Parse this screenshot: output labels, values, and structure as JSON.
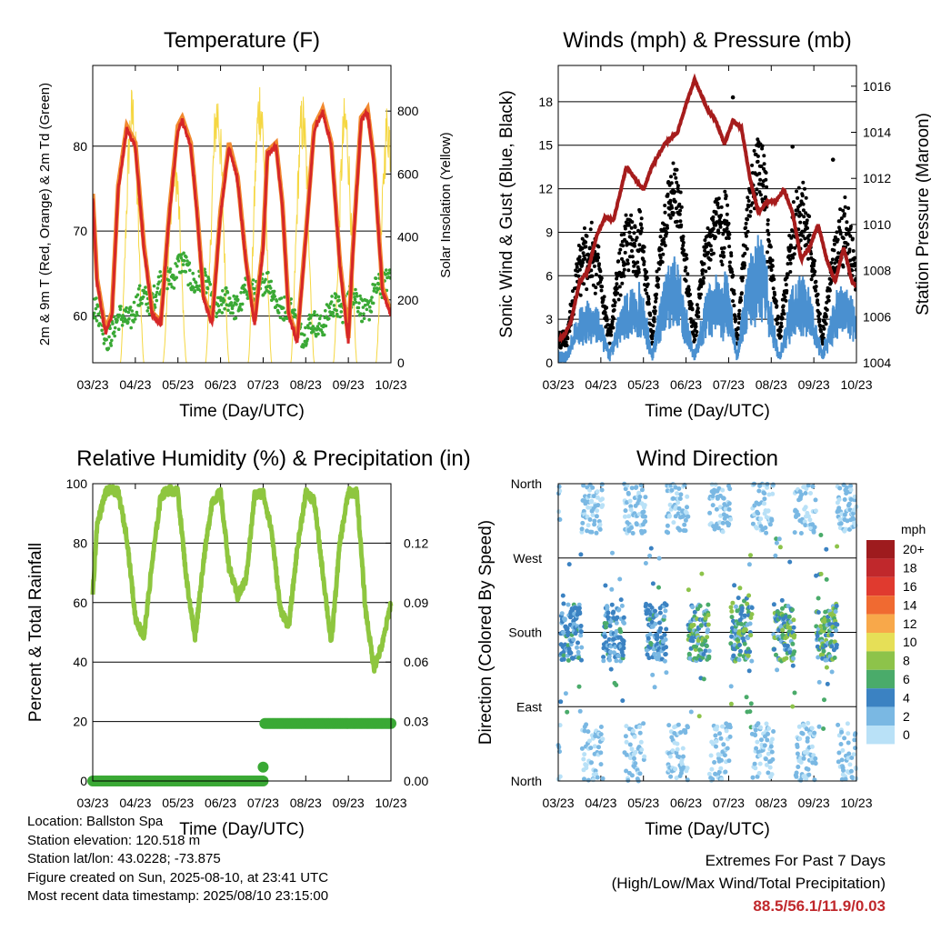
{
  "chart_data": [
    {
      "type": "line",
      "title": "Temperature (F)",
      "xlabel": "Time (Day/UTC)",
      "ylabel": "2m & 9m T (Red, Orange) & 2m Td (Green)",
      "ylabel_right": "Solar Insolation (Yellow)",
      "x_ticks": [
        "03/23",
        "04/23",
        "05/23",
        "06/23",
        "07/23",
        "08/23",
        "09/23",
        "10/23"
      ],
      "y_ticks": [
        60,
        70,
        80
      ],
      "y_right_ticks": [
        0,
        200,
        400,
        600,
        800
      ],
      "ylim": [
        54.5,
        89.5
      ],
      "ylim_right": [
        0,
        945
      ],
      "series": [
        {
          "name": "2m T",
          "color": "#d62728",
          "t": [
            0,
            0.1,
            0.3,
            0.45,
            0.6,
            0.8,
            1,
            1.2,
            1.4,
            1.6,
            1.8,
            2,
            2.1,
            2.3,
            2.45,
            2.6,
            2.8,
            3,
            3.2,
            3.4,
            3.6,
            3.8,
            4,
            4.1,
            4.3,
            4.45,
            4.6,
            4.8,
            5,
            5.2,
            5.4,
            5.6,
            5.8,
            6,
            6.1,
            6.3,
            6.45,
            6.6,
            6.8,
            7
          ],
          "values": [
            74,
            64,
            58,
            60,
            75,
            82,
            80,
            68,
            60,
            59,
            72,
            82,
            83,
            80,
            72,
            62,
            59,
            72,
            80,
            76,
            66,
            59,
            68,
            79,
            80,
            73,
            60,
            57,
            69,
            82,
            84,
            80,
            66,
            57,
            67,
            83,
            84,
            78,
            63,
            60
          ]
        },
        {
          "name": "2m Td",
          "color": "#3aa935",
          "t": [
            0,
            0.3,
            0.6,
            1,
            1.5,
            2,
            2.5,
            3,
            3.5,
            4,
            4.5,
            5,
            5.5,
            6,
            6.5,
            7
          ],
          "values": [
            61,
            58,
            59,
            61,
            63,
            66,
            64,
            61,
            62,
            64,
            61,
            58,
            60,
            62,
            61,
            66
          ]
        },
        {
          "name": "Solar Insolation",
          "color": "#f5d742",
          "peaks": [
            880,
            890,
            700,
            900,
            930,
            870,
            860,
            850,
            890
          ]
        }
      ]
    },
    {
      "type": "scatter",
      "title": "Winds (mph) & Pressure (mb)",
      "xlabel": "Time (Day/UTC)",
      "ylabel": "Sonic Wind & Gust (Blue, Black)",
      "ylabel_right": "Station Pressure (Maroon)",
      "x_ticks": [
        "03/23",
        "04/23",
        "05/23",
        "06/23",
        "07/23",
        "08/23",
        "09/23",
        "10/23"
      ],
      "y_ticks": [
        0,
        3,
        6,
        9,
        12,
        15,
        18
      ],
      "y_right_ticks": [
        1004,
        1006,
        1008,
        1010,
        1012,
        1014,
        1016
      ],
      "ylim": [
        0,
        20.5
      ],
      "ylim_right": [
        1004,
        1016.9
      ],
      "series": [
        {
          "name": "Station Pressure",
          "color": "#a61c1c",
          "t": [
            0,
            0.15,
            0.3,
            0.5,
            0.7,
            0.9,
            1.1,
            1.3,
            1.6,
            1.8,
            2,
            2.2,
            2.5,
            2.8,
            3,
            3.2,
            3.5,
            3.7,
            3.9,
            4.1,
            4.3,
            4.5,
            4.7,
            4.9,
            5.1,
            5.3,
            5.5,
            5.7,
            5.9,
            6.1,
            6.3,
            6.5,
            6.7,
            6.9,
            7
          ],
          "values": [
            1005,
            1005.2,
            1005.8,
            1007.5,
            1008,
            1009.5,
            1010.3,
            1010.2,
            1012.5,
            1012,
            1011.5,
            1012.5,
            1013.5,
            1014,
            1015.2,
            1016.3,
            1015,
            1014.5,
            1013.5,
            1014.5,
            1014.2,
            1012,
            1010.5,
            1011,
            1011,
            1011.5,
            1010.5,
            1008.5,
            1009,
            1010,
            1008.5,
            1007.5,
            1009,
            1007.5,
            1007.3
          ]
        }
      ],
      "gust_envelope": [
        8.5,
        10,
        15,
        12,
        18.3,
        13,
        11,
        10
      ]
    },
    {
      "type": "line",
      "title": "Relative Humidity (%) & Precipitation (in)",
      "xlabel": "Time (Day/UTC)",
      "ylabel": "Percent & Total Rainfall",
      "x_ticks": [
        "03/23",
        "04/23",
        "05/23",
        "06/23",
        "07/23",
        "08/23",
        "09/23",
        "10/23"
      ],
      "y_ticks": [
        0,
        20,
        40,
        60,
        80,
        100
      ],
      "y_right_ticks": [
        "0.00",
        "0.03",
        "0.06",
        "0.09",
        "0.12"
      ],
      "ylim": [
        0,
        100
      ],
      "series": [
        {
          "name": "Relative Humidity",
          "color": "#8ec63f",
          "t": [
            0,
            0.1,
            0.3,
            0.45,
            0.6,
            0.8,
            1,
            1.2,
            1.4,
            1.6,
            1.8,
            2,
            2.2,
            2.4,
            2.6,
            2.8,
            3,
            3.2,
            3.4,
            3.6,
            3.8,
            4,
            4.2,
            4.4,
            4.6,
            4.8,
            5,
            5.2,
            5.4,
            5.6,
            5.8,
            6,
            6.2,
            6.4,
            6.6,
            6.8,
            7
          ],
          "values": [
            63,
            86,
            97,
            98,
            97,
            82,
            55,
            48,
            74,
            96,
            98,
            97,
            68,
            48,
            74,
            94,
            97,
            72,
            62,
            68,
            96,
            97,
            84,
            58,
            52,
            78,
            97,
            94,
            70,
            46,
            80,
            97,
            97,
            58,
            38,
            46,
            60
          ]
        },
        {
          "name": "Total Rainfall",
          "color": "#3aa935",
          "t": [
            0,
            4,
            4.03,
            7
          ],
          "values": [
            0,
            0,
            0.029,
            0.029
          ]
        }
      ]
    },
    {
      "type": "scatter",
      "title": "Wind Direction",
      "xlabel": "Time (Day/UTC)",
      "ylabel": "Direction (Colored By Speed)",
      "x_ticks": [
        "03/23",
        "04/23",
        "05/23",
        "06/23",
        "07/23",
        "08/23",
        "09/23",
        "10/23"
      ],
      "y_ticks": [
        "North",
        "East",
        "South",
        "West",
        "North"
      ],
      "legend_title": "mph",
      "legend_labels": [
        "20+",
        "18",
        "16",
        "14",
        "12",
        "10",
        "8",
        "6",
        "4",
        "2",
        "0"
      ],
      "legend_colors": [
        "#9e1b1e",
        "#c0282c",
        "#e03a2f",
        "#f06a31",
        "#f8a84a",
        "#e6df57",
        "#8dc34a",
        "#4aab6a",
        "#3b82c2",
        "#7ab8e3",
        "#b9e1f7"
      ]
    }
  ],
  "info": {
    "location": "Location: Ballston Spa",
    "elevation": "Station elevation: 120.518 m",
    "latlon": "Station lat/lon: 43.0228; -73.875",
    "created": "Figure created on Sun, 2025-08-10, at 23:41 UTC",
    "recent": "Most recent data timestamp: 2025/08/10 23:15:00"
  },
  "extremes": {
    "title": "Extremes For Past 7 Days",
    "subtitle": "(High/Low/Max Wind/Total Precipitation)",
    "values": "88.5/56.1/11.9/0.03"
  }
}
